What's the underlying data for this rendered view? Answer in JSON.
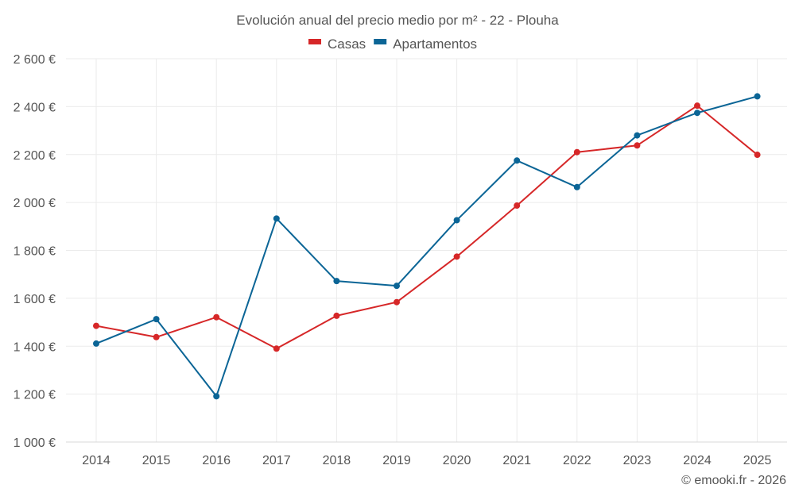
{
  "chart_data": {
    "type": "line",
    "title": "Evolución anual del precio medio por m² - 22 - Plouha",
    "xlabel": "",
    "ylabel": "",
    "categories": [
      "2014",
      "2015",
      "2016",
      "2017",
      "2018",
      "2019",
      "2020",
      "2021",
      "2022",
      "2023",
      "2024",
      "2025"
    ],
    "ylim": [
      1000,
      2600
    ],
    "yticks": [
      1000,
      1200,
      1400,
      1600,
      1800,
      2000,
      2200,
      2400,
      2600
    ],
    "ytick_labels": [
      "1 000 €",
      "1 200 €",
      "1 400 €",
      "1 600 €",
      "1 800 €",
      "2 000 €",
      "2 200 €",
      "2 400 €",
      "2 600 €"
    ],
    "grid": true,
    "legend_position": "top-center",
    "series": [
      {
        "name": "Casas",
        "color": "#d62728",
        "values": [
          1485,
          1438,
          1521,
          1390,
          1527,
          1584,
          1774,
          1987,
          2210,
          2238,
          2404,
          2199
        ]
      },
      {
        "name": "Apartamentos",
        "color": "#0b6596",
        "values": [
          1411,
          1513,
          1191,
          1933,
          1672,
          1652,
          1926,
          2175,
          2064,
          2280,
          2374,
          2443
        ]
      }
    ],
    "credit": "© emooki.fr - 2026"
  }
}
